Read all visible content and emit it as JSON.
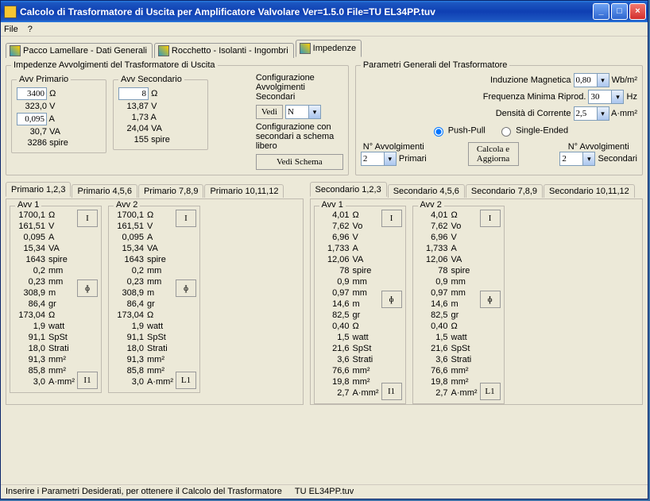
{
  "titlebar": "Calcolo di Trasformatore di Uscita per Amplificatore Valvolare    Ver=1.5.0    File=TU EL34PP.tuv",
  "menu": {
    "file": "File",
    "help": "?"
  },
  "tabs": {
    "t1": "Pacco Lamellare - Dati Generali",
    "t2": "Rocchetto - Isolanti - Ingombri",
    "t3": "Impedenze"
  },
  "impedenze": {
    "legend": "Impedenze Avvolgimenti del Trasformatore di Uscita",
    "primario": {
      "legend": "Avv Primario",
      "ohm": "3400",
      "v": "323,0",
      "a": "0,095",
      "va": "30,7",
      "spire": "3286",
      "u_ohm": "Ω",
      "u_v": "V",
      "u_a": "A",
      "u_va": "VA",
      "u_sp": "spire"
    },
    "secondario": {
      "legend": "Avv Secondario",
      "ohm": "8",
      "v": "13,87",
      "a": "1,73",
      "va": "24,04",
      "spire": "155",
      "u_ohm": "Ω",
      "u_v": "V",
      "u_a": "A",
      "u_va": "VA",
      "u_sp": "spire"
    },
    "conf": {
      "title": "Configurazione Avvolgimenti Secondari",
      "vedi": "Vedi",
      "n": "N",
      "note": "Configurazione con secondari a schema libero",
      "vedischema": "Vedi Schema"
    }
  },
  "params": {
    "legend": "Parametri Generali del Trasformatore",
    "ind_lbl": "Induzione Magnetica",
    "ind_val": "0,80",
    "ind_u": "Wb/m²",
    "freq_lbl": "Frequenza Minima Riprod.",
    "freq_val": "30",
    "freq_u": "Hz",
    "dens_lbl": "Densità di Corrente",
    "dens_val": "2,5",
    "dens_u": "A·mm²",
    "pp": "Push-Pull",
    "se": "Single-Ended",
    "navvp_lbl": "N° Avvolgimenti",
    "navvp_sub": "Primari",
    "navvp": "2",
    "calc": "Calcola e Aggiorna",
    "navvs_lbl": "N° Avvolgimenti",
    "navvs_sub": "Secondari",
    "navvs": "2"
  },
  "primtabs": {
    "t1": "Primario 1,2,3",
    "t2": "Primario 4,5,6",
    "t3": "Primario 7,8,9",
    "t4": "Primario 10,11,12"
  },
  "sectabs": {
    "t1": "Secondario 1,2,3",
    "t2": "Secondario 4,5,6",
    "t3": "Secondario 7,8,9",
    "t4": "Secondario 10,11,12"
  },
  "units": [
    "Ω",
    "V",
    "A",
    "VA",
    "spire",
    "mm",
    "mm",
    "m",
    "gr",
    "Ω",
    "watt",
    "SpSt",
    "Strati",
    "mm²",
    "mm²",
    "A·mm²"
  ],
  "units_sec": [
    "Ω",
    "Vo",
    "V",
    "A",
    "VA",
    "spire",
    "mm",
    "mm",
    "m",
    "gr",
    "Ω",
    "watt",
    "SpSt",
    "Strati",
    "mm²",
    "mm²",
    "A·mm²"
  ],
  "prim": {
    "a1": {
      "lg": "Avv 1",
      "vals": [
        "1700,1",
        "161,51",
        "0,095",
        "15,34",
        "1643",
        "0,2",
        "0,23",
        "308,9",
        "86,4",
        "173,04",
        "1,9",
        "91,1",
        "18,0",
        "91,3",
        "85,8",
        "3,0"
      ],
      "b1": "I",
      "b2": "ɸ",
      "b3": "I1"
    },
    "a2": {
      "lg": "Avv 2",
      "vals": [
        "1700,1",
        "161,51",
        "0,095",
        "15,34",
        "1643",
        "0,2",
        "0,23",
        "308,9",
        "86,4",
        "173,04",
        "1,9",
        "91,1",
        "18,0",
        "91,3",
        "85,8",
        "3,0"
      ],
      "b1": "I",
      "b2": "ɸ",
      "b3": "L1"
    }
  },
  "sec": {
    "a1": {
      "lg": "Avv 1",
      "vals": [
        "4,01",
        "7,62",
        "6,96",
        "1,733",
        "12,06",
        "78",
        "0,9",
        "0,97",
        "14,6",
        "82,5",
        "0,40",
        "1,5",
        "21,6",
        "3,6",
        "76,6",
        "19,8",
        "2,7"
      ],
      "b1": "I",
      "b2": "ɸ",
      "b3": "I1"
    },
    "a2": {
      "lg": "Avv 2",
      "vals": [
        "4,01",
        "7,62",
        "6,96",
        "1,733",
        "12,06",
        "78",
        "0,9",
        "0,97",
        "14,6",
        "82,5",
        "0,40",
        "1,5",
        "21,6",
        "3,6",
        "76,6",
        "19,8",
        "2,7"
      ],
      "b1": "I",
      "b2": "ɸ",
      "b3": "L1"
    }
  },
  "status": {
    "s1": "Inserire i Parametri Desiderati, per ottenere il Calcolo del Trasformatore",
    "s2": "TU EL34PP.tuv"
  }
}
